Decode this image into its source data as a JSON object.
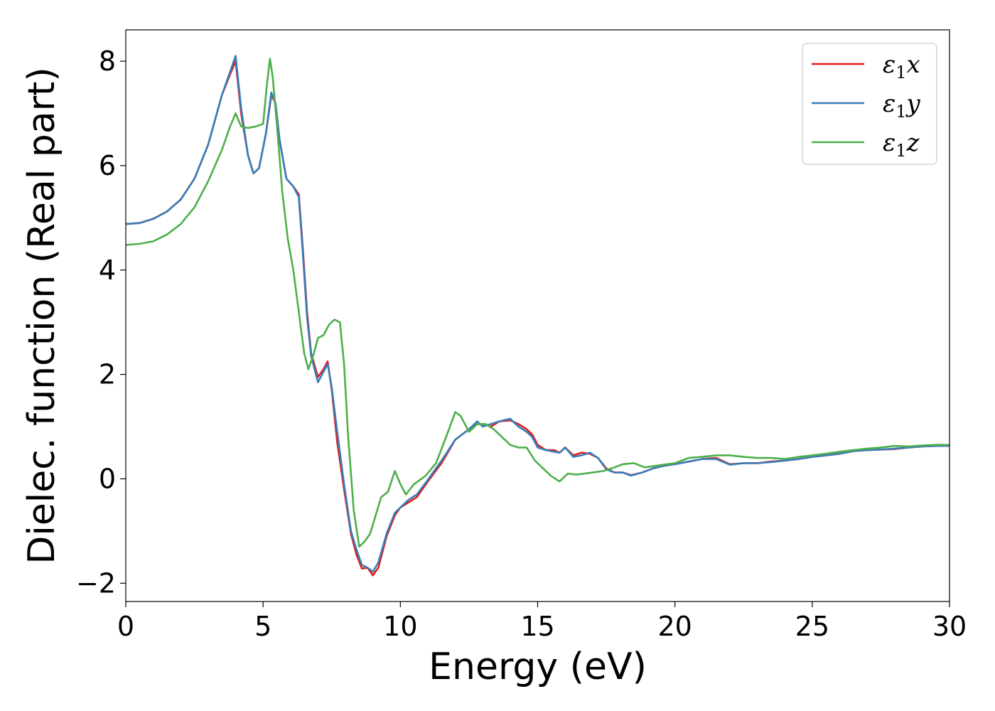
{
  "chart_data": {
    "type": "line",
    "title": "",
    "xlabel": "Energy (eV)",
    "ylabel": "Dielec. function (Real part)",
    "xlim": [
      0,
      30
    ],
    "ylim": [
      -2.35,
      8.6
    ],
    "xticks": [
      0,
      5,
      10,
      15,
      20,
      25,
      30
    ],
    "xtick_labels": [
      "0",
      "5",
      "10",
      "15",
      "20",
      "25",
      "30"
    ],
    "yticks": [
      -2,
      0,
      2,
      4,
      6,
      8
    ],
    "ytick_labels": [
      "−2",
      "0",
      "2",
      "4",
      "6",
      "8"
    ],
    "grid": false,
    "legend_position": "top-right",
    "series": [
      {
        "name": "ε1x",
        "legend_base": "ε",
        "legend_sub": "1",
        "legend_tail": "x",
        "color": "#e41a1c",
        "points": [
          [
            0,
            4.88
          ],
          [
            0.5,
            4.9
          ],
          [
            1,
            4.98
          ],
          [
            1.5,
            5.12
          ],
          [
            2,
            5.35
          ],
          [
            2.5,
            5.75
          ],
          [
            3,
            6.4
          ],
          [
            3.5,
            7.35
          ],
          [
            3.8,
            7.75
          ],
          [
            4.0,
            8.0
          ],
          [
            4.2,
            7.0
          ],
          [
            4.45,
            6.2
          ],
          [
            4.65,
            5.85
          ],
          [
            4.85,
            5.95
          ],
          [
            5.1,
            6.6
          ],
          [
            5.3,
            7.35
          ],
          [
            5.45,
            7.2
          ],
          [
            5.6,
            6.5
          ],
          [
            5.85,
            5.75
          ],
          [
            6.1,
            5.6
          ],
          [
            6.3,
            5.45
          ],
          [
            6.45,
            4.4
          ],
          [
            6.6,
            3.2
          ],
          [
            6.75,
            2.4
          ],
          [
            7.0,
            1.95
          ],
          [
            7.2,
            2.1
          ],
          [
            7.35,
            2.25
          ],
          [
            7.5,
            1.7
          ],
          [
            7.7,
            0.7
          ],
          [
            7.95,
            -0.2
          ],
          [
            8.2,
            -1.05
          ],
          [
            8.4,
            -1.45
          ],
          [
            8.6,
            -1.72
          ],
          [
            8.8,
            -1.7
          ],
          [
            9.0,
            -1.85
          ],
          [
            9.2,
            -1.7
          ],
          [
            9.5,
            -1.1
          ],
          [
            9.8,
            -0.7
          ],
          [
            10.0,
            -0.55
          ],
          [
            10.3,
            -0.45
          ],
          [
            10.6,
            -0.35
          ],
          [
            11.0,
            -0.05
          ],
          [
            11.5,
            0.3
          ],
          [
            12.0,
            0.75
          ],
          [
            12.5,
            0.95
          ],
          [
            12.8,
            1.05
          ],
          [
            13.0,
            1.05
          ],
          [
            13.3,
            1.0
          ],
          [
            13.6,
            1.1
          ],
          [
            14.0,
            1.12
          ],
          [
            14.3,
            1.05
          ],
          [
            14.6,
            0.95
          ],
          [
            14.8,
            0.85
          ],
          [
            15.0,
            0.65
          ],
          [
            15.3,
            0.55
          ],
          [
            15.6,
            0.55
          ],
          [
            15.8,
            0.5
          ],
          [
            16.0,
            0.6
          ],
          [
            16.3,
            0.45
          ],
          [
            16.6,
            0.5
          ],
          [
            16.9,
            0.48
          ],
          [
            17.2,
            0.4
          ],
          [
            17.5,
            0.2
          ],
          [
            17.8,
            0.12
          ],
          [
            18.1,
            0.12
          ],
          [
            18.4,
            0.07
          ],
          [
            18.8,
            0.12
          ],
          [
            19.2,
            0.2
          ],
          [
            19.6,
            0.25
          ],
          [
            20.0,
            0.28
          ],
          [
            20.5,
            0.33
          ],
          [
            21.0,
            0.38
          ],
          [
            21.5,
            0.4
          ],
          [
            22.0,
            0.28
          ],
          [
            22.5,
            0.3
          ],
          [
            23.0,
            0.3
          ],
          [
            23.5,
            0.33
          ],
          [
            24.0,
            0.35
          ],
          [
            24.5,
            0.38
          ],
          [
            25.0,
            0.42
          ],
          [
            25.5,
            0.45
          ],
          [
            26.0,
            0.48
          ],
          [
            26.5,
            0.53
          ],
          [
            27.0,
            0.55
          ],
          [
            27.5,
            0.56
          ],
          [
            28.0,
            0.57
          ],
          [
            28.5,
            0.6
          ],
          [
            29.0,
            0.62
          ],
          [
            29.5,
            0.63
          ],
          [
            30.0,
            0.63
          ]
        ]
      },
      {
        "name": "ε1y",
        "legend_base": "ε",
        "legend_sub": "1",
        "legend_tail": "y",
        "color": "#377eb8",
        "points": [
          [
            0,
            4.88
          ],
          [
            0.5,
            4.9
          ],
          [
            1,
            4.98
          ],
          [
            1.5,
            5.12
          ],
          [
            2,
            5.35
          ],
          [
            2.5,
            5.75
          ],
          [
            3,
            6.4
          ],
          [
            3.5,
            7.35
          ],
          [
            3.8,
            7.8
          ],
          [
            4.0,
            8.1
          ],
          [
            4.2,
            7.1
          ],
          [
            4.45,
            6.2
          ],
          [
            4.65,
            5.85
          ],
          [
            4.85,
            5.95
          ],
          [
            5.1,
            6.6
          ],
          [
            5.3,
            7.4
          ],
          [
            5.45,
            7.2
          ],
          [
            5.6,
            6.5
          ],
          [
            5.85,
            5.75
          ],
          [
            6.1,
            5.6
          ],
          [
            6.3,
            5.4
          ],
          [
            6.45,
            4.3
          ],
          [
            6.6,
            3.1
          ],
          [
            6.75,
            2.35
          ],
          [
            7.0,
            1.85
          ],
          [
            7.2,
            2.05
          ],
          [
            7.35,
            2.2
          ],
          [
            7.5,
            1.75
          ],
          [
            7.7,
            0.9
          ],
          [
            7.95,
            -0.1
          ],
          [
            8.2,
            -1.0
          ],
          [
            8.4,
            -1.35
          ],
          [
            8.6,
            -1.65
          ],
          [
            8.8,
            -1.7
          ],
          [
            9.0,
            -1.78
          ],
          [
            9.2,
            -1.6
          ],
          [
            9.5,
            -1.05
          ],
          [
            9.8,
            -0.65
          ],
          [
            10.0,
            -0.55
          ],
          [
            10.3,
            -0.4
          ],
          [
            10.6,
            -0.3
          ],
          [
            11.0,
            -0.02
          ],
          [
            11.5,
            0.35
          ],
          [
            12.0,
            0.75
          ],
          [
            12.5,
            0.95
          ],
          [
            12.8,
            1.1
          ],
          [
            13.0,
            1.0
          ],
          [
            13.3,
            1.05
          ],
          [
            13.6,
            1.1
          ],
          [
            14.0,
            1.15
          ],
          [
            14.3,
            1.0
          ],
          [
            14.6,
            0.9
          ],
          [
            14.8,
            0.8
          ],
          [
            15.0,
            0.6
          ],
          [
            15.3,
            0.55
          ],
          [
            15.6,
            0.52
          ],
          [
            15.8,
            0.5
          ],
          [
            16.0,
            0.6
          ],
          [
            16.3,
            0.42
          ],
          [
            16.6,
            0.45
          ],
          [
            16.9,
            0.5
          ],
          [
            17.2,
            0.4
          ],
          [
            17.5,
            0.18
          ],
          [
            17.8,
            0.12
          ],
          [
            18.1,
            0.12
          ],
          [
            18.4,
            0.06
          ],
          [
            18.8,
            0.12
          ],
          [
            19.2,
            0.2
          ],
          [
            19.6,
            0.25
          ],
          [
            20.0,
            0.28
          ],
          [
            20.5,
            0.33
          ],
          [
            21.0,
            0.38
          ],
          [
            21.5,
            0.38
          ],
          [
            22.0,
            0.27
          ],
          [
            22.5,
            0.3
          ],
          [
            23.0,
            0.3
          ],
          [
            23.5,
            0.32
          ],
          [
            24.0,
            0.35
          ],
          [
            24.5,
            0.38
          ],
          [
            25.0,
            0.42
          ],
          [
            25.5,
            0.45
          ],
          [
            26.0,
            0.48
          ],
          [
            26.5,
            0.53
          ],
          [
            27.0,
            0.55
          ],
          [
            27.5,
            0.56
          ],
          [
            28.0,
            0.58
          ],
          [
            28.5,
            0.6
          ],
          [
            29.0,
            0.62
          ],
          [
            29.5,
            0.63
          ],
          [
            30.0,
            0.63
          ]
        ]
      },
      {
        "name": "ε1z",
        "legend_base": "ε",
        "legend_sub": "1",
        "legend_tail": "z",
        "color": "#4daf4a",
        "points": [
          [
            0,
            4.48
          ],
          [
            0.5,
            4.5
          ],
          [
            1,
            4.55
          ],
          [
            1.5,
            4.68
          ],
          [
            2,
            4.88
          ],
          [
            2.5,
            5.2
          ],
          [
            3,
            5.7
          ],
          [
            3.5,
            6.3
          ],
          [
            3.8,
            6.75
          ],
          [
            4.0,
            7.0
          ],
          [
            4.2,
            6.75
          ],
          [
            4.45,
            6.72
          ],
          [
            4.75,
            6.75
          ],
          [
            5.0,
            6.8
          ],
          [
            5.15,
            7.6
          ],
          [
            5.25,
            8.05
          ],
          [
            5.35,
            7.7
          ],
          [
            5.5,
            6.8
          ],
          [
            5.7,
            5.5
          ],
          [
            5.9,
            4.6
          ],
          [
            6.1,
            4.0
          ],
          [
            6.3,
            3.2
          ],
          [
            6.5,
            2.4
          ],
          [
            6.65,
            2.1
          ],
          [
            6.85,
            2.4
          ],
          [
            7.0,
            2.7
          ],
          [
            7.2,
            2.75
          ],
          [
            7.4,
            2.95
          ],
          [
            7.6,
            3.05
          ],
          [
            7.8,
            3.0
          ],
          [
            7.95,
            2.2
          ],
          [
            8.1,
            0.8
          ],
          [
            8.3,
            -0.6
          ],
          [
            8.5,
            -1.3
          ],
          [
            8.7,
            -1.2
          ],
          [
            8.9,
            -1.05
          ],
          [
            9.1,
            -0.7
          ],
          [
            9.3,
            -0.35
          ],
          [
            9.55,
            -0.25
          ],
          [
            9.8,
            0.15
          ],
          [
            10.0,
            -0.1
          ],
          [
            10.2,
            -0.3
          ],
          [
            10.5,
            -0.1
          ],
          [
            10.9,
            0.05
          ],
          [
            11.3,
            0.3
          ],
          [
            11.7,
            0.85
          ],
          [
            12.0,
            1.28
          ],
          [
            12.2,
            1.2
          ],
          [
            12.5,
            0.9
          ],
          [
            12.8,
            1.05
          ],
          [
            13.1,
            1.05
          ],
          [
            13.4,
            0.95
          ],
          [
            13.7,
            0.8
          ],
          [
            14.0,
            0.65
          ],
          [
            14.3,
            0.6
          ],
          [
            14.6,
            0.6
          ],
          [
            14.9,
            0.35
          ],
          [
            15.2,
            0.2
          ],
          [
            15.5,
            0.05
          ],
          [
            15.8,
            -0.05
          ],
          [
            16.1,
            0.1
          ],
          [
            16.4,
            0.08
          ],
          [
            16.7,
            0.1
          ],
          [
            17.0,
            0.12
          ],
          [
            17.4,
            0.15
          ],
          [
            17.8,
            0.22
          ],
          [
            18.1,
            0.28
          ],
          [
            18.5,
            0.3
          ],
          [
            18.9,
            0.22
          ],
          [
            19.3,
            0.25
          ],
          [
            19.7,
            0.28
          ],
          [
            20.0,
            0.3
          ],
          [
            20.5,
            0.4
          ],
          [
            21.0,
            0.42
          ],
          [
            21.5,
            0.45
          ],
          [
            22.0,
            0.45
          ],
          [
            22.5,
            0.42
          ],
          [
            23.0,
            0.4
          ],
          [
            23.5,
            0.4
          ],
          [
            24.0,
            0.38
          ],
          [
            24.5,
            0.42
          ],
          [
            25.0,
            0.45
          ],
          [
            25.5,
            0.48
          ],
          [
            26.0,
            0.52
          ],
          [
            26.5,
            0.55
          ],
          [
            27.0,
            0.58
          ],
          [
            27.5,
            0.6
          ],
          [
            28.0,
            0.63
          ],
          [
            28.5,
            0.62
          ],
          [
            29.0,
            0.64
          ],
          [
            29.5,
            0.65
          ],
          [
            30.0,
            0.65
          ]
        ]
      }
    ]
  }
}
